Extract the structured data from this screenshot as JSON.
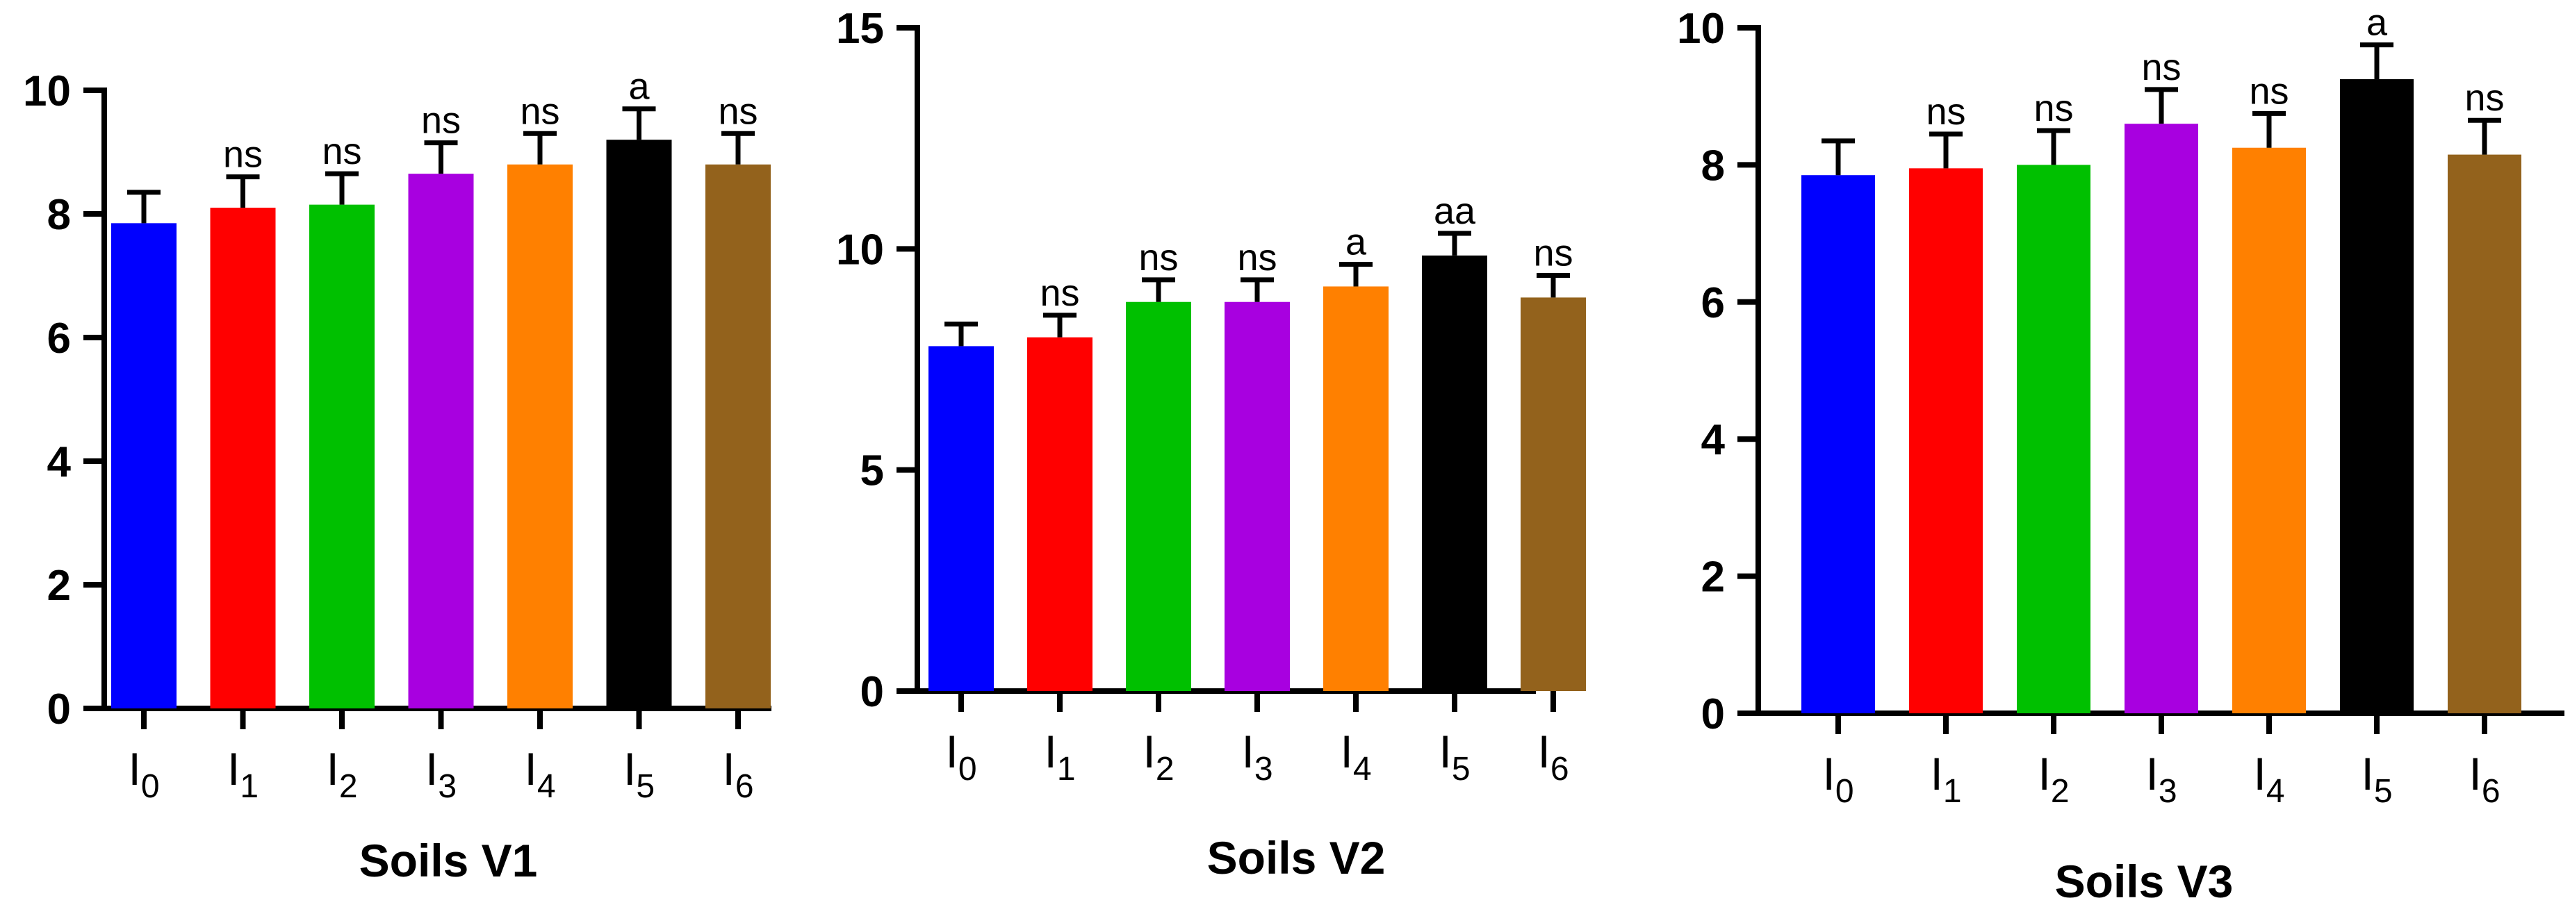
{
  "chart_data": [
    {
      "type": "bar",
      "title": "Soils V1",
      "categories": [
        {
          "base": "I",
          "sub": "0"
        },
        {
          "base": "I",
          "sub": "1"
        },
        {
          "base": "I",
          "sub": "2"
        },
        {
          "base": "I",
          "sub": "3"
        },
        {
          "base": "I",
          "sub": "4"
        },
        {
          "base": "I",
          "sub": "5"
        },
        {
          "base": "I",
          "sub": "6"
        }
      ],
      "values": [
        7.85,
        8.1,
        8.15,
        8.65,
        8.8,
        9.2,
        8.8
      ],
      "errors": [
        0.5,
        0.5,
        0.5,
        0.5,
        0.5,
        0.5,
        0.5
      ],
      "significance": [
        "",
        "ns",
        "ns",
        "ns",
        "ns",
        "a",
        "ns"
      ],
      "colors": [
        "#0000FF",
        "#FF0000",
        "#00C000",
        "#A800E0",
        "#FF8000",
        "#000000",
        "#93621C"
      ],
      "ylim": [
        0,
        10
      ],
      "yticks": [
        0,
        2,
        4,
        6,
        8,
        10
      ],
      "grid": false
    },
    {
      "type": "bar",
      "title": "Soils V2",
      "categories": [
        {
          "base": "I",
          "sub": "0"
        },
        {
          "base": "I",
          "sub": "1"
        },
        {
          "base": "I",
          "sub": "2"
        },
        {
          "base": "I",
          "sub": "3"
        },
        {
          "base": "I",
          "sub": "4"
        },
        {
          "base": "I",
          "sub": "5"
        },
        {
          "base": "I",
          "sub": "6"
        }
      ],
      "values": [
        7.8,
        8.0,
        8.8,
        8.8,
        9.15,
        9.85,
        8.9
      ],
      "errors": [
        0.5,
        0.5,
        0.5,
        0.5,
        0.5,
        0.5,
        0.5
      ],
      "significance": [
        "",
        "ns",
        "ns",
        "ns",
        "a",
        "aa",
        "ns"
      ],
      "colors": [
        "#0000FF",
        "#FF0000",
        "#00C000",
        "#A800E0",
        "#FF8000",
        "#000000",
        "#93621C"
      ],
      "ylim": [
        0,
        15
      ],
      "yticks": [
        0,
        5,
        10,
        15
      ],
      "grid": false
    },
    {
      "type": "bar",
      "title": "Soils V3",
      "categories": [
        {
          "base": "I",
          "sub": "0"
        },
        {
          "base": "I",
          "sub": "1"
        },
        {
          "base": "I",
          "sub": "2"
        },
        {
          "base": "I",
          "sub": "3"
        },
        {
          "base": "I",
          "sub": "4"
        },
        {
          "base": "I",
          "sub": "5"
        },
        {
          "base": "I",
          "sub": "6"
        }
      ],
      "values": [
        7.85,
        7.95,
        8.0,
        8.6,
        8.25,
        9.25,
        8.15
      ],
      "errors": [
        0.5,
        0.5,
        0.5,
        0.5,
        0.5,
        0.5,
        0.5
      ],
      "significance": [
        "",
        "ns",
        "ns",
        "ns",
        "ns",
        "a",
        "ns"
      ],
      "colors": [
        "#0000FF",
        "#FF0000",
        "#00C000",
        "#A800E0",
        "#FF8000",
        "#000000",
        "#93621C"
      ],
      "ylim": [
        0,
        10
      ],
      "yticks": [
        0,
        2,
        4,
        6,
        8,
        10
      ],
      "grid": false
    }
  ]
}
